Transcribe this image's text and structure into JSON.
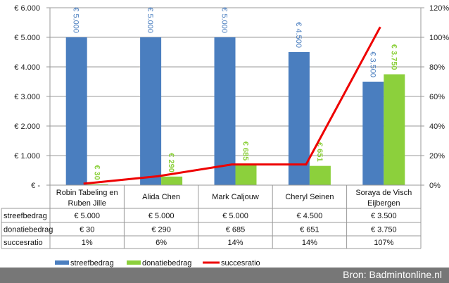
{
  "chart_data": {
    "type": "bar",
    "categories": [
      "Robin Tabeling en Ruben Jille",
      "Alida Chen",
      "Mark Caljouw",
      "Cheryl Seinen",
      "Soraya de Visch Eijbergen"
    ],
    "category_lines": [
      [
        "Robin Tabeling en",
        "Ruben Jille"
      ],
      [
        "Alida Chen"
      ],
      [
        "Mark Caljouw"
      ],
      [
        "Cheryl Seinen"
      ],
      [
        "Soraya de Visch",
        "Eijbergen"
      ]
    ],
    "series": [
      {
        "name": "streefbedrag",
        "type": "bar",
        "axis": "left",
        "color": "#4a7ebf",
        "values": [
          5000,
          5000,
          5000,
          4500,
          3500
        ],
        "labels": [
          "€ 5.000",
          "€ 5.000",
          "€ 5.000",
          "€ 4.500",
          "€ 3.500"
        ]
      },
      {
        "name": "donatiebedrag",
        "type": "bar",
        "axis": "left",
        "color": "#8cd03c",
        "values": [
          30,
          290,
          685,
          651,
          3750
        ],
        "labels": [
          "€ 30",
          "€ 290",
          "€ 685",
          "€ 651",
          "€ 3.750"
        ]
      },
      {
        "name": "succesratio",
        "type": "line",
        "axis": "right",
        "color": "#ee0000",
        "values": [
          1,
          6,
          14,
          14,
          107
        ],
        "labels": [
          "1%",
          "6%",
          "14%",
          "14%",
          "107%"
        ]
      }
    ],
    "ylim": [
      0,
      6000
    ],
    "y_ticks": [
      "€ -",
      "€ 1.000",
      "€ 2.000",
      "€ 3.000",
      "€ 4.000",
      "€ 5.000",
      "€ 6.000"
    ],
    "y2lim": [
      0,
      120
    ],
    "y2_ticks": [
      "0%",
      "20%",
      "40%",
      "60%",
      "80%",
      "100%",
      "120%"
    ],
    "grid": true,
    "legend": "bottom",
    "data_table": true
  },
  "source": "Bron: Badmintonline.nl"
}
